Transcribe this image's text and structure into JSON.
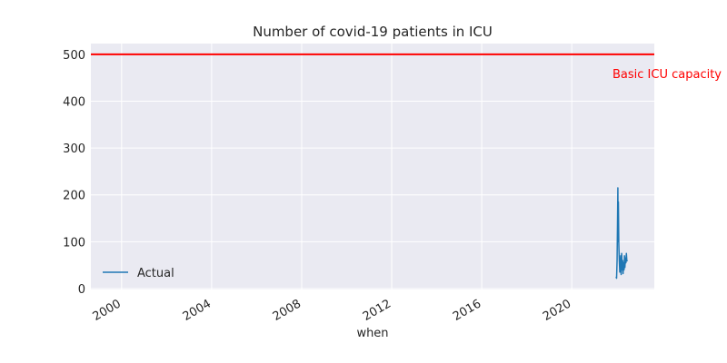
{
  "chart_data": {
    "type": "line",
    "title": "Number of covid-19 patients in ICU",
    "xlabel": "when",
    "ylabel": "",
    "x_type": "date",
    "xlim": [
      "1998-08-20",
      "2023-09-01"
    ],
    "ylim": [
      -2,
      523
    ],
    "x_ticks": [
      {
        "value": "2000-01-01",
        "label": "2000"
      },
      {
        "value": "2004-01-01",
        "label": "2004"
      },
      {
        "value": "2008-01-01",
        "label": "2008"
      },
      {
        "value": "2012-01-01",
        "label": "2012"
      },
      {
        "value": "2016-01-01",
        "label": "2016"
      },
      {
        "value": "2020-01-01",
        "label": "2020"
      }
    ],
    "y_ticks": [
      0,
      100,
      200,
      300,
      400,
      500
    ],
    "grid": true,
    "legend_position": "lower-left",
    "colors": {
      "background": "#eaeaf2",
      "grid": "#ffffff",
      "series": "#1f77b4",
      "threshold": "#ff0000",
      "text": "#262626"
    },
    "threshold": {
      "y": 500,
      "label": "Basic ICU capacity",
      "color": "#ff0000"
    },
    "series": [
      {
        "name": "Actual",
        "color": "#1f77b4",
        "points": [
          [
            "2021-12-20",
            25
          ],
          [
            "2021-12-28",
            22
          ],
          [
            "2022-01-05",
            60
          ],
          [
            "2022-01-12",
            140
          ],
          [
            "2022-01-18",
            215
          ],
          [
            "2022-01-22",
            100
          ],
          [
            "2022-01-26",
            185
          ],
          [
            "2022-02-02",
            95
          ],
          [
            "2022-02-10",
            60
          ],
          [
            "2022-02-18",
            35
          ],
          [
            "2022-02-25",
            50
          ],
          [
            "2022-03-05",
            70
          ],
          [
            "2022-03-12",
            30
          ],
          [
            "2022-03-20",
            75
          ],
          [
            "2022-03-28",
            40
          ],
          [
            "2022-04-05",
            60
          ],
          [
            "2022-04-12",
            32
          ],
          [
            "2022-04-20",
            55
          ],
          [
            "2022-04-28",
            40
          ],
          [
            "2022-05-05",
            70
          ],
          [
            "2022-05-12",
            45
          ],
          [
            "2022-05-20",
            65
          ],
          [
            "2022-05-28",
            55
          ],
          [
            "2022-06-05",
            75
          ],
          [
            "2022-06-12",
            60
          ],
          [
            "2022-06-20",
            58
          ]
        ]
      }
    ]
  }
}
